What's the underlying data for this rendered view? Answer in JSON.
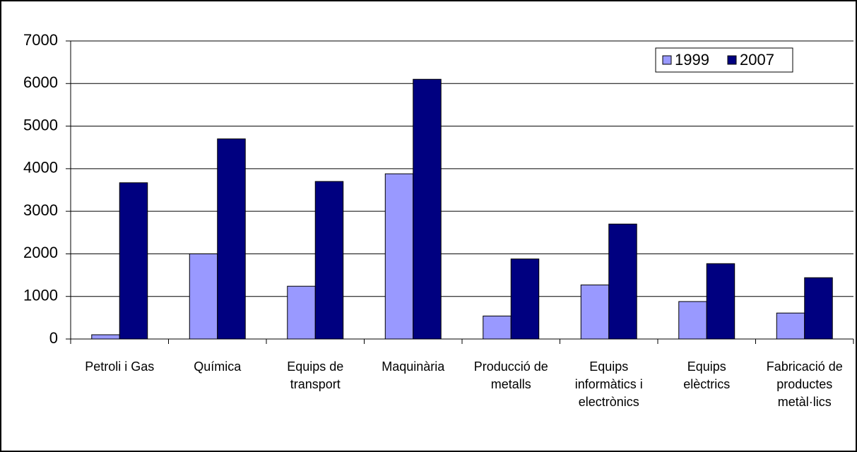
{
  "chart_data": {
    "type": "bar",
    "categories": [
      "Petroli i Gas",
      "Química",
      "Equips de transport",
      "Maquinària",
      "Producció de metalls",
      "Equips informàtics i electrònics",
      "Equips elèctrics",
      "Fabricació de productes metàl·lics"
    ],
    "series": [
      {
        "name": "1999",
        "color": "#9999ff",
        "values": [
          100,
          2000,
          1240,
          3880,
          540,
          1270,
          880,
          610
        ]
      },
      {
        "name": "2007",
        "color": "#000080",
        "values": [
          3670,
          4700,
          3700,
          6100,
          1880,
          2700,
          1770,
          1440
        ]
      }
    ],
    "ylim": [
      0,
      7000
    ],
    "yticks": [
      0,
      1000,
      2000,
      3000,
      4000,
      5000,
      6000,
      7000
    ],
    "grid": true,
    "legend": "top-right"
  }
}
